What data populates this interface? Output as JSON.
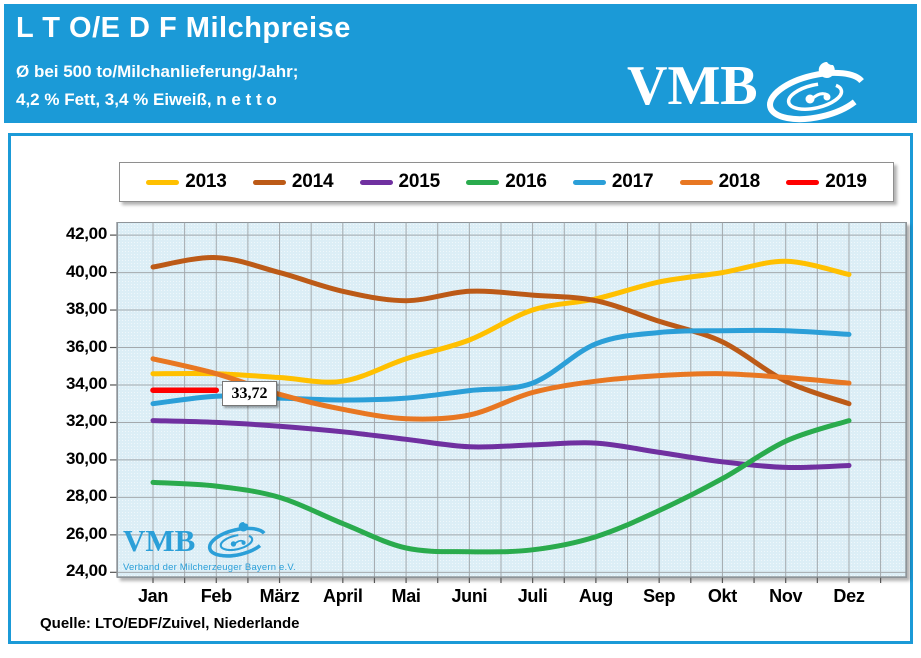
{
  "header": {
    "title": "L T O/E D F Milchpreise",
    "subtitle1": "Ø bei 500 to/Milchanlieferung/Jahr;",
    "subtitle2": "4,2 % Fett, 3,4 % Eiweiß, n e t t o",
    "logo_text": "VMB"
  },
  "watermark": {
    "logo_text": "VMB",
    "org": "Verband der Milcherzeuger Bayern e.V."
  },
  "source": "Quelle: LTO/EDF/Zuivel, Niederlande",
  "colors": {
    "banner_blue": "#1b9ad7",
    "plot_background": "#dceef6",
    "gridline": "#a3a9ad",
    "plot_border": "#8e9599"
  },
  "chart_data": {
    "type": "line",
    "title": "L T O/E D F Milchpreise",
    "xlabel": "",
    "ylabel": "",
    "categories": [
      "Jan",
      "Feb",
      "März",
      "April",
      "Mai",
      "Juni",
      "Juli",
      "Aug",
      "Sep",
      "Okt",
      "Nov",
      "Dez"
    ],
    "y_ticks": [
      "42,00",
      "40,00",
      "38,00",
      "36,00",
      "34,00",
      "32,00",
      "30,00",
      "28,00",
      "26,00",
      "24,00"
    ],
    "ylim": [
      23.75,
      42.7
    ],
    "grid": true,
    "legend_position": "top",
    "series": [
      {
        "name": "2013",
        "color": "#ffc000",
        "values": [
          34.6,
          34.6,
          34.4,
          34.2,
          35.4,
          36.4,
          38.0,
          38.6,
          39.5,
          40.0,
          40.6,
          39.9
        ]
      },
      {
        "name": "2014",
        "color": "#bc5a17",
        "values": [
          40.3,
          40.8,
          40.0,
          39.0,
          38.5,
          39.0,
          38.8,
          38.5,
          37.4,
          36.3,
          34.2,
          33.0
        ]
      },
      {
        "name": "2015",
        "color": "#7030a0",
        "values": [
          32.1,
          32.0,
          31.8,
          31.5,
          31.1,
          30.7,
          30.8,
          30.9,
          30.4,
          29.9,
          29.6,
          29.7
        ]
      },
      {
        "name": "2016",
        "color": "#2aab4d",
        "values": [
          28.8,
          28.6,
          28.0,
          26.6,
          25.3,
          25.1,
          25.2,
          25.9,
          27.3,
          29.0,
          31.0,
          32.1
        ]
      },
      {
        "name": "2017",
        "color": "#2b9fd8",
        "values": [
          33.0,
          33.4,
          33.3,
          33.2,
          33.3,
          33.7,
          34.1,
          36.2,
          36.8,
          36.9,
          36.9,
          36.7
        ]
      },
      {
        "name": "2018",
        "color": "#e87722",
        "values": [
          35.4,
          34.6,
          33.5,
          32.7,
          32.2,
          32.4,
          33.6,
          34.2,
          34.5,
          34.6,
          34.4,
          34.1
        ]
      },
      {
        "name": "2019",
        "color": "#ff0000",
        "values": [
          33.72,
          33.72
        ]
      }
    ],
    "annotation": {
      "series": "2019",
      "month": "Feb",
      "text": "33,72",
      "value": 33.72
    }
  }
}
